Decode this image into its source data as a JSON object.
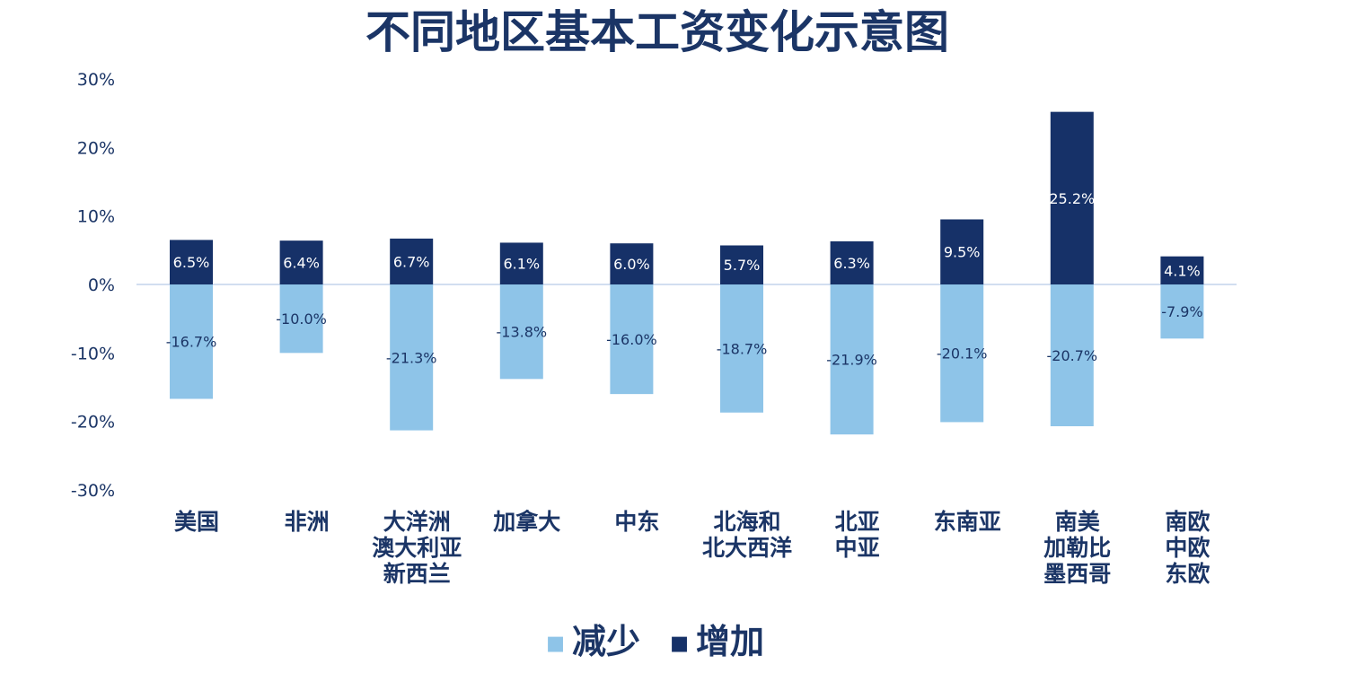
{
  "chart_data": {
    "type": "bar",
    "title": "不同地区基本工资变化示意图",
    "categories": [
      [
        "美国"
      ],
      [
        "非洲"
      ],
      [
        "大洋洲",
        "澳大利亚",
        "新西兰"
      ],
      [
        "加拿大"
      ],
      [
        "中东"
      ],
      [
        "北海和",
        "北大西洋"
      ],
      [
        "北亚",
        "中亚"
      ],
      [
        "东南亚"
      ],
      [
        "南美",
        "加勒比",
        "墨西哥"
      ],
      [
        "南欧",
        "中欧",
        "东欧"
      ]
    ],
    "series": [
      {
        "name": "减少",
        "color": "#8ec4e8",
        "values": [
          -16.7,
          -10.0,
          -21.3,
          -13.8,
          -16.0,
          -18.7,
          -21.9,
          -20.1,
          -20.7,
          -7.9
        ],
        "labels": [
          "-16.7%",
          "-10.0%",
          "-21.3%",
          "-13.8%",
          "-16.0%",
          "-18.7%",
          "-21.9%",
          "-20.1%",
          "-20.7%",
          "-7.9%"
        ]
      },
      {
        "name": "增加",
        "color": "#163168",
        "values": [
          6.5,
          6.4,
          6.7,
          6.1,
          6.0,
          5.7,
          6.3,
          9.5,
          25.2,
          4.1
        ],
        "labels": [
          "6.5%",
          "6.4%",
          "6.7%",
          "6.1%",
          "6.0%",
          "5.7%",
          "6.3%",
          "9.5%",
          "25.2%",
          "4.1%"
        ]
      }
    ],
    "ylim": [
      -30,
      30
    ],
    "yticks": [
      30,
      20,
      10,
      0,
      -10,
      -20,
      -30
    ],
    "ytick_labels": [
      "30%",
      "20%",
      "10%",
      "0%",
      "-10%",
      "-20%",
      "-30%"
    ],
    "grid": false,
    "legend_position": "bottom-center",
    "legend": [
      {
        "marker": "▪",
        "label": "减少",
        "color": "#8ec4e8"
      },
      {
        "marker": "▪",
        "label": "增加",
        "color": "#163168"
      }
    ],
    "colors": {
      "text": "#1b3566",
      "zero_line": "#b7cbe6"
    }
  }
}
